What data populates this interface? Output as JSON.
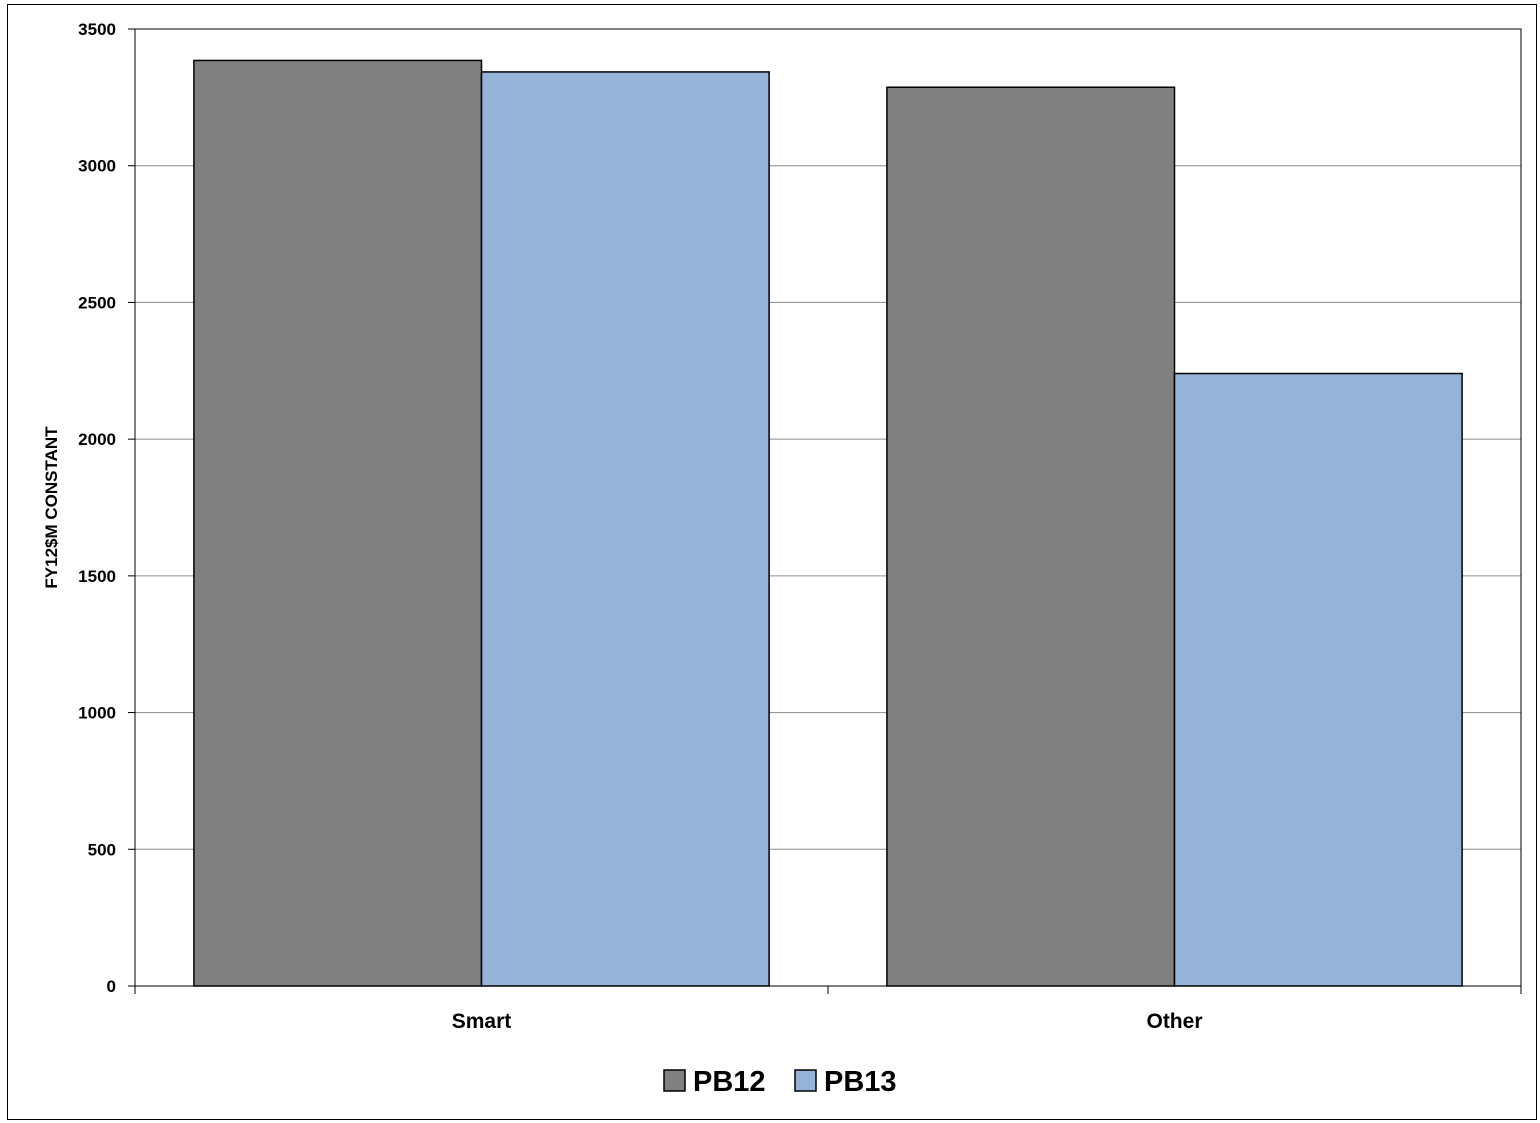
{
  "chart_data": {
    "type": "bar",
    "categories": [
      "Smart",
      "Other"
    ],
    "series": [
      {
        "name": "PB12",
        "values": [
          3385,
          3287
        ],
        "color": "#808080"
      },
      {
        "name": "PB13",
        "values": [
          3343,
          2240
        ],
        "color": "#95b3d7"
      }
    ],
    "ylabel": "FY12$M CONSTANT",
    "xlabel": "",
    "ylim": [
      0,
      3500
    ],
    "yticks": [
      0,
      500,
      1000,
      1500,
      2000,
      2500,
      3000,
      3500
    ],
    "grid": true,
    "legend_position": "bottom"
  }
}
